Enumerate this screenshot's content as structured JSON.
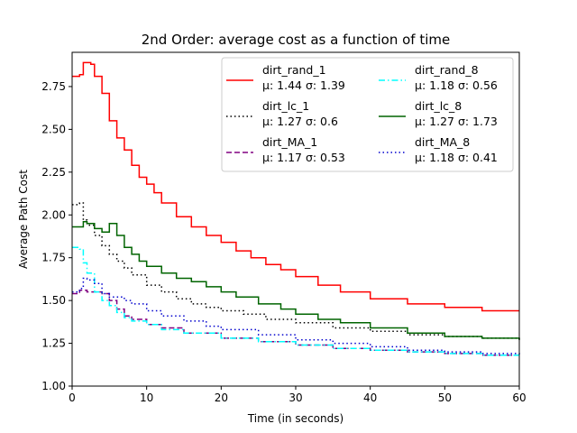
{
  "chart_data": {
    "type": "line",
    "title": "2nd Order: average cost as a function of time",
    "xlabel": "Time (in seconds)",
    "ylabel": "Average Path Cost",
    "xlim": [
      0,
      60
    ],
    "ylim": [
      1.0,
      2.95
    ],
    "xticks": [
      0,
      10,
      20,
      30,
      40,
      50,
      60
    ],
    "xtick_labels": [
      "0",
      "10",
      "20",
      "30",
      "40",
      "50",
      "60"
    ],
    "yticks": [
      1.0,
      1.25,
      1.5,
      1.75,
      2.0,
      2.25,
      2.5,
      2.75
    ],
    "ytick_labels": [
      "1.00",
      "1.25",
      "1.50",
      "1.75",
      "2.00",
      "2.25",
      "2.50",
      "2.75"
    ],
    "grid": false,
    "legend_position": "top-right",
    "legend_columns": 2,
    "series": [
      {
        "name": "dirt_rand_1",
        "stats": "μ: 1.44 σ: 1.39",
        "color": "#ff0000",
        "style": "solid",
        "x": [
          0,
          1,
          1.5,
          2,
          2.5,
          3,
          4,
          5,
          6,
          7,
          8,
          9,
          10,
          11,
          12,
          14,
          16,
          18,
          20,
          22,
          24,
          26,
          28,
          30,
          33,
          36,
          40,
          45,
          50,
          55,
          60
        ],
        "y": [
          2.81,
          2.82,
          2.89,
          2.89,
          2.88,
          2.81,
          2.71,
          2.55,
          2.45,
          2.38,
          2.29,
          2.22,
          2.18,
          2.13,
          2.07,
          1.99,
          1.93,
          1.88,
          1.84,
          1.79,
          1.75,
          1.71,
          1.68,
          1.64,
          1.59,
          1.55,
          1.51,
          1.48,
          1.46,
          1.44,
          1.44
        ]
      },
      {
        "name": "dirt_lc_1",
        "stats": "μ: 1.27 σ: 0.6",
        "color": "#000000",
        "style": "dotted",
        "x": [
          0,
          1,
          1.5,
          2,
          3,
          4,
          5,
          6,
          7,
          8,
          10,
          12,
          14,
          16,
          18,
          20,
          23,
          26,
          30,
          35,
          40,
          45,
          50,
          55,
          60
        ],
        "y": [
          2.06,
          2.07,
          1.97,
          1.94,
          1.88,
          1.82,
          1.77,
          1.73,
          1.69,
          1.65,
          1.59,
          1.55,
          1.51,
          1.48,
          1.46,
          1.44,
          1.42,
          1.39,
          1.37,
          1.34,
          1.32,
          1.3,
          1.29,
          1.28,
          1.27
        ]
      },
      {
        "name": "dirt_MA_1",
        "stats": "μ: 1.17 σ: 0.53",
        "color": "#800080",
        "style": "dashed",
        "x": [
          0,
          1,
          2,
          3,
          4,
          5,
          6,
          7,
          8,
          10,
          12,
          15,
          20,
          25,
          30,
          35,
          40,
          45,
          50,
          55,
          60
        ],
        "y": [
          1.54,
          1.56,
          1.55,
          1.55,
          1.54,
          1.5,
          1.45,
          1.41,
          1.39,
          1.36,
          1.34,
          1.31,
          1.28,
          1.26,
          1.24,
          1.22,
          1.21,
          1.2,
          1.19,
          1.18,
          1.18
        ]
      },
      {
        "name": "dirt_rand_8",
        "stats": "μ: 1.18 σ: 0.56",
        "color": "#00ffff",
        "style": "dashdot",
        "x": [
          0,
          1,
          1.5,
          2,
          3,
          4,
          5,
          6,
          7,
          8,
          10,
          12,
          15,
          20,
          25,
          30,
          35,
          40,
          45,
          50,
          55,
          60
        ],
        "y": [
          1.81,
          1.8,
          1.72,
          1.66,
          1.55,
          1.5,
          1.47,
          1.43,
          1.4,
          1.38,
          1.36,
          1.33,
          1.31,
          1.28,
          1.26,
          1.24,
          1.22,
          1.21,
          1.2,
          1.19,
          1.18,
          1.18
        ]
      },
      {
        "name": "dirt_lc_8",
        "stats": "μ: 1.27 σ: 1.73",
        "color": "#006400",
        "style": "solid",
        "x": [
          0,
          1,
          1.5,
          2,
          3,
          4,
          5,
          6,
          7,
          8,
          9,
          10,
          12,
          14,
          16,
          18,
          20,
          22,
          25,
          28,
          30,
          33,
          36,
          40,
          45,
          50,
          55,
          60
        ],
        "y": [
          1.93,
          1.93,
          1.96,
          1.95,
          1.92,
          1.9,
          1.95,
          1.88,
          1.81,
          1.77,
          1.73,
          1.7,
          1.66,
          1.63,
          1.61,
          1.58,
          1.55,
          1.52,
          1.48,
          1.45,
          1.42,
          1.39,
          1.37,
          1.34,
          1.31,
          1.29,
          1.28,
          1.27
        ]
      },
      {
        "name": "dirt_MA_8",
        "stats": "μ: 1.18 σ: 0.41",
        "color": "#0000cd",
        "style": "dotted",
        "x": [
          0,
          1,
          1.5,
          2,
          3,
          4,
          5,
          7,
          8,
          10,
          12,
          15,
          18,
          20,
          25,
          30,
          35,
          40,
          45,
          50,
          55,
          60
        ],
        "y": [
          1.55,
          1.57,
          1.63,
          1.62,
          1.6,
          1.54,
          1.52,
          1.5,
          1.48,
          1.44,
          1.41,
          1.38,
          1.35,
          1.33,
          1.3,
          1.27,
          1.25,
          1.23,
          1.21,
          1.2,
          1.19,
          1.18
        ]
      }
    ]
  }
}
